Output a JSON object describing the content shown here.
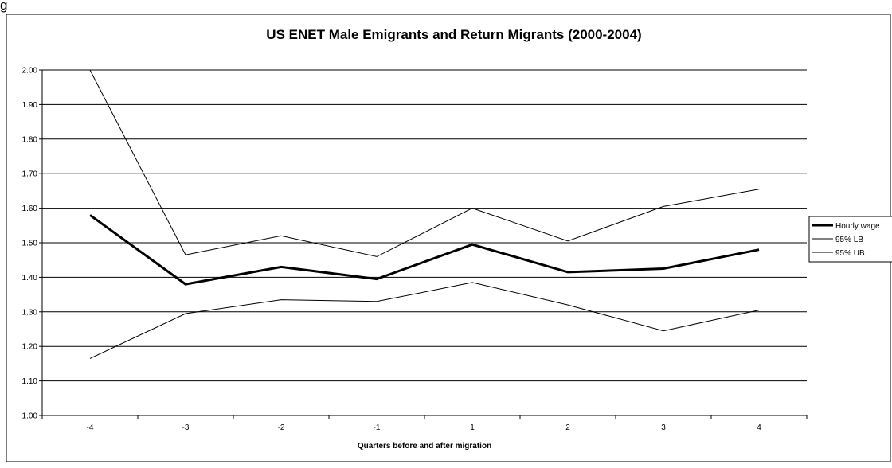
{
  "figure_label": "g",
  "chart_data": {
    "type": "line",
    "title": "US ENET Male Emigrants and Return Migrants (2000-2004)",
    "xlabel": "Quarters before and after migration",
    "ylabel": "",
    "categories": [
      "-4",
      "-3",
      "-2",
      "-1",
      "1",
      "2",
      "3",
      "4"
    ],
    "ylim": [
      1.0,
      2.0
    ],
    "yticks": [
      "1.00",
      "1.10",
      "1.20",
      "1.30",
      "1.40",
      "1.50",
      "1.60",
      "1.70",
      "1.80",
      "1.90",
      "2.00"
    ],
    "grid": true,
    "legend_position": "right",
    "series": [
      {
        "name": "Hourly wage",
        "values": [
          1.58,
          1.38,
          1.43,
          1.395,
          1.495,
          1.415,
          1.425,
          1.48
        ],
        "color": "#000000",
        "weight": "bold"
      },
      {
        "name": "95% LB",
        "values": [
          1.165,
          1.295,
          1.335,
          1.33,
          1.385,
          1.32,
          1.245,
          1.305
        ],
        "color": "#000000",
        "weight": "thin"
      },
      {
        "name": "95% UB",
        "values": [
          2.0,
          1.465,
          1.52,
          1.46,
          1.6,
          1.505,
          1.605,
          1.655
        ],
        "color": "#000000",
        "weight": "thin"
      }
    ]
  }
}
